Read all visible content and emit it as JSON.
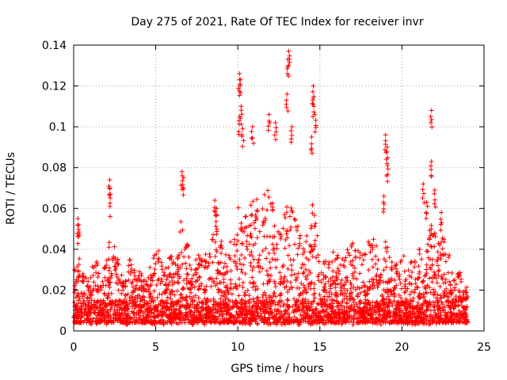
{
  "chart_data": {
    "type": "scatter",
    "title": "Day 275 of 2021, Rate Of TEC Index for receiver invr",
    "xlabel": "GPS time / hours",
    "ylabel": "ROTI / TECUs",
    "xlim": [
      0,
      25
    ],
    "ylim": [
      0,
      0.14
    ],
    "grid": true,
    "marker": "+",
    "color": "#ff0000",
    "x_ticks": [
      0,
      5,
      10,
      15,
      20,
      25
    ],
    "x_tick_labels": [
      "0",
      "5",
      "10",
      "15",
      "20",
      "25"
    ],
    "y_ticks": [
      0,
      0.02,
      0.04,
      0.06,
      0.08,
      0.1,
      0.12,
      0.14
    ],
    "y_tick_labels": [
      "0",
      "0.02",
      "0.04",
      "0.06",
      "0.08",
      "0.1",
      "0.12",
      "0.14"
    ],
    "data_range": {
      "x": [
        0,
        24
      ],
      "y": [
        0,
        0.137
      ]
    },
    "notable_points": [
      {
        "x": 0.25,
        "y": 0.055
      },
      {
        "x": 0.3,
        "y": 0.052
      },
      {
        "x": 2.2,
        "y": 0.074
      },
      {
        "x": 2.2,
        "y": 0.07
      },
      {
        "x": 6.6,
        "y": 0.078
      },
      {
        "x": 6.7,
        "y": 0.075
      },
      {
        "x": 8.6,
        "y": 0.064
      },
      {
        "x": 8.7,
        "y": 0.06
      },
      {
        "x": 10.1,
        "y": 0.126
      },
      {
        "x": 10.15,
        "y": 0.123
      },
      {
        "x": 10.2,
        "y": 0.11
      },
      {
        "x": 10.1,
        "y": 0.105
      },
      {
        "x": 10.3,
        "y": 0.099
      },
      {
        "x": 10.9,
        "y": 0.1
      },
      {
        "x": 11.9,
        "y": 0.106
      },
      {
        "x": 12.3,
        "y": 0.102
      },
      {
        "x": 13.1,
        "y": 0.137
      },
      {
        "x": 13.05,
        "y": 0.133
      },
      {
        "x": 13.0,
        "y": 0.116
      },
      {
        "x": 13.3,
        "y": 0.1
      },
      {
        "x": 14.6,
        "y": 0.12
      },
      {
        "x": 14.6,
        "y": 0.114
      },
      {
        "x": 14.7,
        "y": 0.106
      },
      {
        "x": 14.5,
        "y": 0.095
      },
      {
        "x": 19.0,
        "y": 0.096
      },
      {
        "x": 19.1,
        "y": 0.09
      },
      {
        "x": 19.1,
        "y": 0.082
      },
      {
        "x": 18.9,
        "y": 0.066
      },
      {
        "x": 21.8,
        "y": 0.108
      },
      {
        "x": 21.8,
        "y": 0.083
      },
      {
        "x": 21.3,
        "y": 0.072
      },
      {
        "x": 22.0,
        "y": 0.069
      },
      {
        "x": 21.5,
        "y": 0.063
      },
      {
        "x": 22.4,
        "y": 0.058
      }
    ],
    "envelope": {
      "x": [
        0,
        0.2,
        0.4,
        0.6,
        0.8,
        1.0,
        1.2,
        1.4,
        1.6,
        1.8,
        2.0,
        2.2,
        2.4,
        2.6,
        2.8,
        3.0,
        3.2,
        3.4,
        3.6,
        3.8,
        4.0,
        4.2,
        4.4,
        4.6,
        4.8,
        5.0,
        5.2,
        5.4,
        5.6,
        5.8,
        6.0,
        6.2,
        6.4,
        6.6,
        6.8,
        7.0,
        7.2,
        7.4,
        7.6,
        7.8,
        8.0,
        8.2,
        8.4,
        8.6,
        8.8,
        9.0,
        9.2,
        9.4,
        9.6,
        9.8,
        10.0,
        10.2,
        10.4,
        10.6,
        10.8,
        11.0,
        11.2,
        11.4,
        11.6,
        11.8,
        12.0,
        12.2,
        12.4,
        12.6,
        12.8,
        13.0,
        13.2,
        13.4,
        13.6,
        13.8,
        14.0,
        14.2,
        14.4,
        14.6,
        14.8,
        15.0,
        15.2,
        15.4,
        15.6,
        15.8,
        16.0,
        16.2,
        16.4,
        16.6,
        16.8,
        17.0,
        17.2,
        17.4,
        17.6,
        17.8,
        18.0,
        18.2,
        18.4,
        18.6,
        18.8,
        19.0,
        19.2,
        19.4,
        19.6,
        19.8,
        20.0,
        20.2,
        20.4,
        20.6,
        20.8,
        21.0,
        21.2,
        21.4,
        21.6,
        21.8,
        22.0,
        22.2,
        22.4,
        22.6,
        22.8,
        23.0,
        23.2,
        23.4,
        23.6,
        23.8,
        24.0
      ],
      "y": [
        0.03,
        0.04,
        0.038,
        0.03,
        0.028,
        0.03,
        0.035,
        0.04,
        0.03,
        0.03,
        0.035,
        0.06,
        0.045,
        0.04,
        0.03,
        0.03,
        0.03,
        0.035,
        0.04,
        0.028,
        0.03,
        0.03,
        0.03,
        0.03,
        0.035,
        0.04,
        0.04,
        0.035,
        0.033,
        0.035,
        0.038,
        0.04,
        0.045,
        0.06,
        0.05,
        0.04,
        0.035,
        0.035,
        0.038,
        0.035,
        0.04,
        0.04,
        0.045,
        0.055,
        0.05,
        0.045,
        0.04,
        0.04,
        0.045,
        0.05,
        0.06,
        0.065,
        0.055,
        0.06,
        0.065,
        0.07,
        0.065,
        0.06,
        0.07,
        0.075,
        0.07,
        0.065,
        0.06,
        0.055,
        0.06,
        0.07,
        0.065,
        0.06,
        0.055,
        0.05,
        0.045,
        0.05,
        0.055,
        0.065,
        0.05,
        0.04,
        0.04,
        0.038,
        0.035,
        0.04,
        0.04,
        0.038,
        0.035,
        0.04,
        0.04,
        0.045,
        0.04,
        0.04,
        0.04,
        0.04,
        0.045,
        0.045,
        0.05,
        0.04,
        0.04,
        0.045,
        0.04,
        0.035,
        0.035,
        0.04,
        0.04,
        0.035,
        0.035,
        0.035,
        0.035,
        0.04,
        0.04,
        0.045,
        0.05,
        0.055,
        0.05,
        0.045,
        0.05,
        0.045,
        0.04,
        0.035,
        0.03,
        0.03,
        0.028,
        0.025,
        0.024
      ]
    }
  }
}
